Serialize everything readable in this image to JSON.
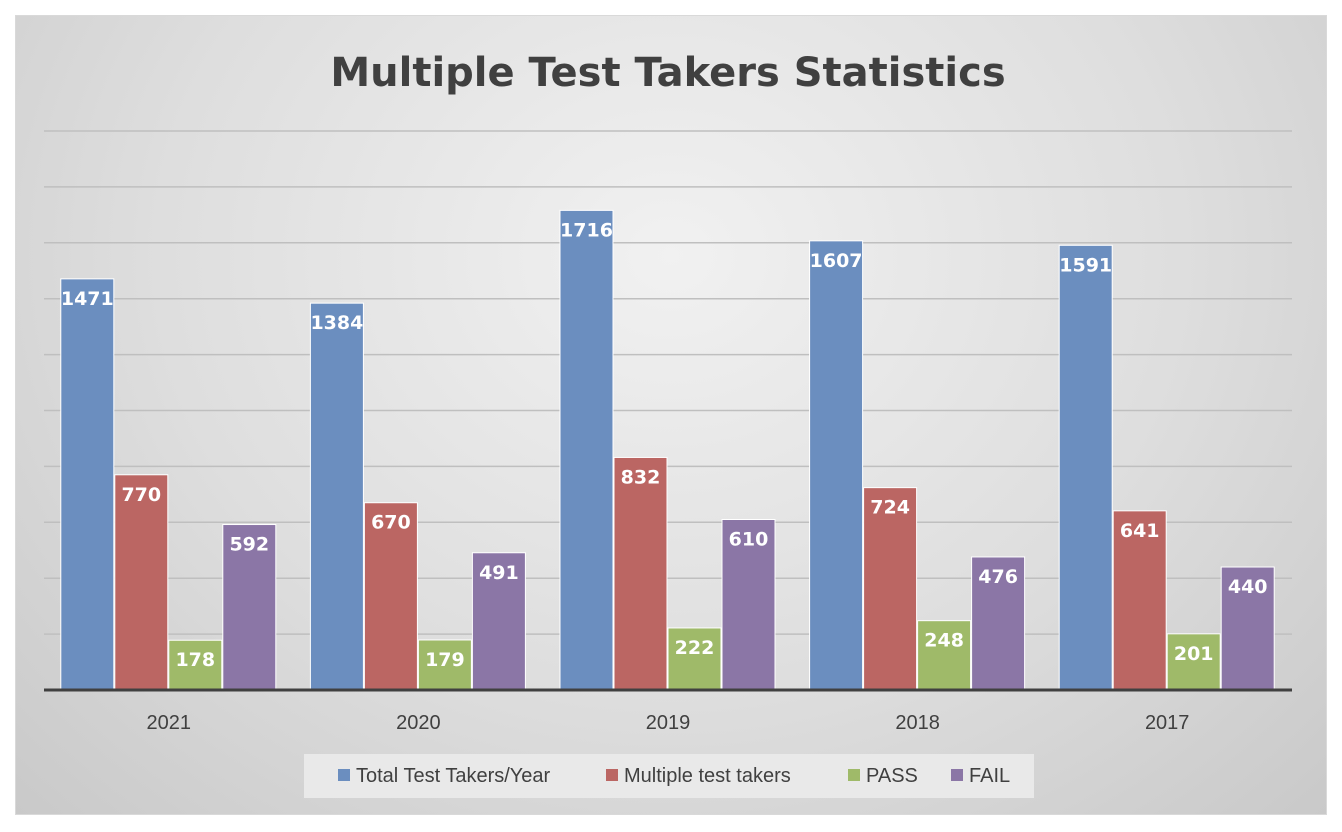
{
  "chart_data": {
    "type": "bar",
    "title": "Multiple Test Takers Statistics",
    "categories": [
      "2021",
      "2020",
      "2019",
      "2018",
      "2017"
    ],
    "series": [
      {
        "name": "Total Test Takers/Year",
        "color": "#6b8ebf",
        "values": [
          1471,
          1384,
          1716,
          1607,
          1591
        ]
      },
      {
        "name": "Multiple test takers",
        "color": "#bb6663",
        "values": [
          770,
          670,
          832,
          724,
          641
        ]
      },
      {
        "name": "PASS",
        "color": "#9fba69",
        "values": [
          178,
          179,
          222,
          248,
          201
        ]
      },
      {
        "name": "FAIL",
        "color": "#8b76a6",
        "values": [
          592,
          491,
          610,
          476,
          440
        ]
      }
    ],
    "ylim": [
      0,
      2000
    ],
    "grid": true,
    "legend_position": "bottom",
    "xlabel": "",
    "ylabel": ""
  }
}
